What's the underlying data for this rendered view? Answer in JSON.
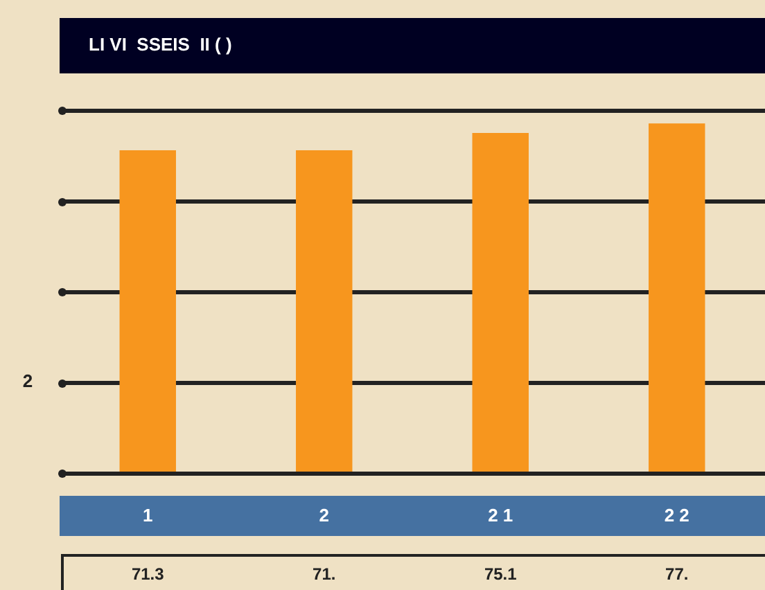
{
  "chart_data": {
    "type": "bar",
    "title": "LI VI  SSEIS  II ( )",
    "categories": [
      "1",
      "2",
      "2 1",
      "2 2"
    ],
    "values": [
      71.3,
      71.3,
      75.1,
      77.2
    ],
    "value_labels": [
      "71.3",
      "71.",
      "75.1",
      "77."
    ],
    "color": "#f7961e",
    "ylim": [
      0,
      80
    ],
    "yticks": [
      {
        "value": 0,
        "label": null
      },
      {
        "value": 20,
        "label": null
      },
      {
        "value": 40,
        "label": null
      },
      {
        "value": 60,
        "label": null
      },
      {
        "value": 80,
        "label": null
      }
    ],
    "annotations": [
      "2"
    ],
    "grid": "y",
    "legend": false
  }
}
